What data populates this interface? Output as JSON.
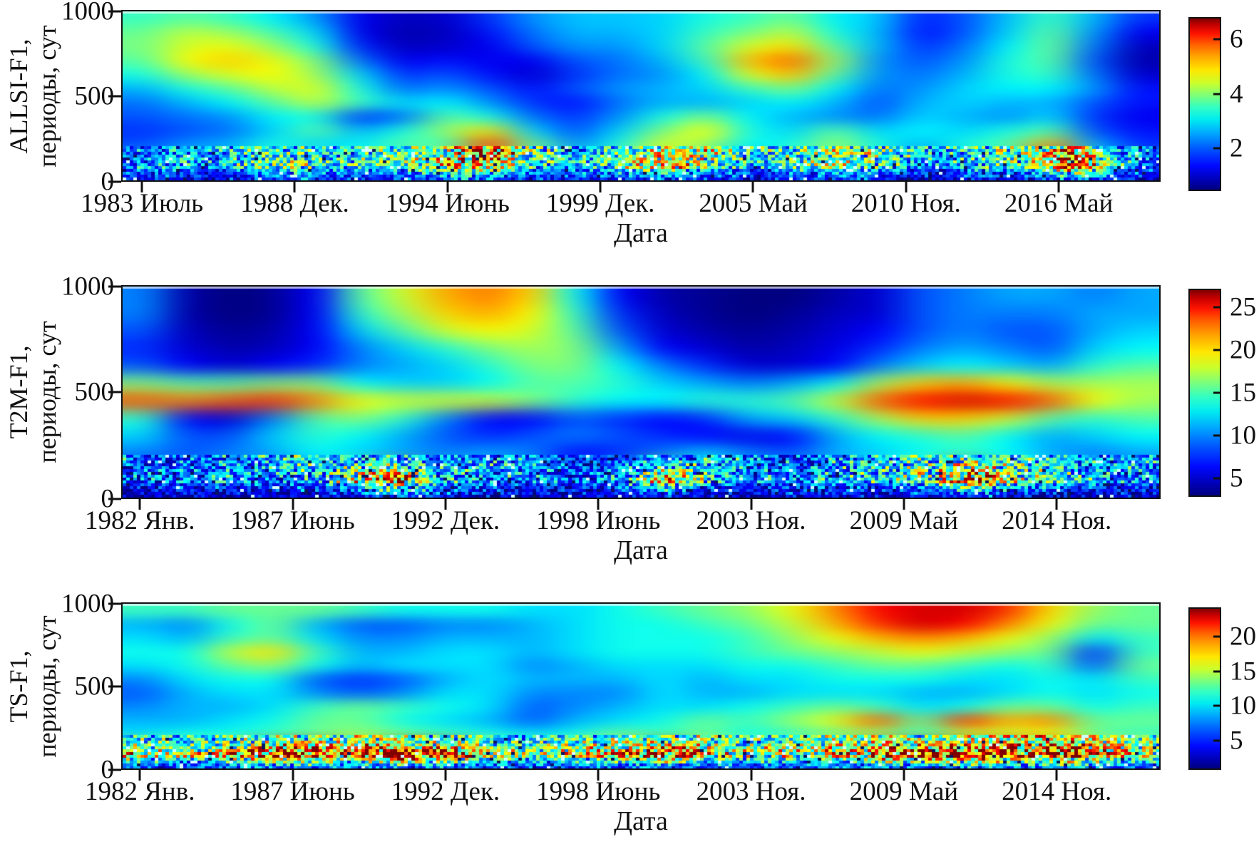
{
  "figure": {
    "description": "Три вейвлет-спектрограммы",
    "x_axis_title": "Дата",
    "colormap": "jet"
  },
  "chart_data": [
    {
      "type": "heatmap",
      "name": "ALLSI-F1",
      "y_label_line1": "ALLSI-F1,",
      "y_label_line2": "периоды, сут",
      "x_axis_title": "Дата",
      "ylim": [
        0,
        1000
      ],
      "y_ticks": [
        "1000",
        "500",
        "0"
      ],
      "x_ticks": [
        {
          "label": "1983 Июль",
          "f": 0.02
        },
        {
          "label": "1988 Дек.",
          "f": 0.167
        },
        {
          "label": "1994 Июнь",
          "f": 0.314
        },
        {
          "label": "1999 Дек.",
          "f": 0.461
        },
        {
          "label": "2005 Май",
          "f": 0.608
        },
        {
          "label": "2010 Ноя.",
          "f": 0.755
        },
        {
          "label": "2016 Май",
          "f": 0.902
        }
      ],
      "colorbar": {
        "vmin": 0.5,
        "vmax": 6.75,
        "ticks": [
          {
            "label": "6",
            "value": 6
          },
          {
            "label": "4",
            "value": 4
          },
          {
            "label": "2",
            "value": 2
          }
        ]
      },
      "grid_rows_top_to_bottom": true,
      "row_period_centers": [
        958,
        875,
        792,
        708,
        625,
        542,
        458,
        375,
        292,
        208,
        125,
        42
      ],
      "values": [
        [
          3.2,
          3.4,
          3.2,
          2.8,
          2.2,
          1.2,
          0.9,
          1.0,
          1.6,
          2.2,
          2.5,
          2.5,
          2.6,
          3.0,
          3.2,
          3.5,
          2.8,
          2.5,
          1.5,
          1.8,
          2.5,
          3.2,
          2.4,
          1.6
        ],
        [
          3.5,
          4.0,
          3.8,
          3.3,
          2.6,
          1.2,
          0.8,
          0.9,
          1.4,
          2.0,
          2.4,
          2.4,
          2.6,
          3.2,
          3.6,
          4.0,
          3.0,
          2.4,
          1.4,
          1.8,
          2.6,
          3.4,
          2.2,
          1.2
        ],
        [
          3.6,
          4.2,
          4.3,
          3.8,
          3.0,
          1.5,
          0.9,
          1.0,
          1.2,
          1.8,
          2.2,
          2.2,
          2.6,
          3.4,
          4.2,
          4.6,
          3.4,
          2.4,
          1.6,
          2.0,
          2.8,
          3.5,
          2.0,
          0.9
        ],
        [
          3.4,
          4.4,
          4.7,
          4.3,
          3.6,
          2.0,
          1.2,
          1.4,
          1.2,
          1.2,
          1.8,
          2.0,
          2.4,
          3.2,
          4.8,
          5.3,
          3.8,
          2.2,
          1.8,
          2.2,
          3.0,
          3.4,
          1.8,
          0.8
        ],
        [
          3.0,
          3.8,
          4.2,
          4.4,
          3.8,
          2.6,
          1.6,
          1.8,
          1.4,
          1.0,
          1.6,
          2.0,
          2.2,
          2.8,
          4.2,
          4.8,
          3.4,
          2.2,
          2.0,
          2.4,
          3.0,
          3.2,
          2.0,
          1.0
        ],
        [
          2.4,
          3.0,
          3.4,
          4.0,
          4.2,
          3.0,
          2.0,
          2.2,
          1.8,
          1.4,
          1.8,
          2.2,
          2.4,
          2.6,
          3.2,
          3.6,
          2.8,
          2.0,
          2.2,
          2.6,
          2.8,
          2.8,
          2.2,
          1.4
        ],
        [
          2.0,
          2.4,
          2.8,
          3.4,
          4.0,
          3.2,
          2.6,
          2.8,
          2.2,
          1.6,
          1.4,
          2.0,
          2.4,
          2.4,
          2.6,
          2.8,
          2.4,
          1.8,
          2.4,
          2.6,
          2.4,
          2.4,
          1.8,
          1.4
        ],
        [
          1.8,
          2.0,
          2.2,
          2.8,
          3.0,
          1.6,
          2.0,
          3.4,
          3.0,
          2.0,
          1.6,
          2.2,
          3.0,
          3.6,
          2.8,
          2.4,
          2.2,
          2.0,
          2.6,
          2.4,
          2.2,
          2.6,
          1.6,
          1.2
        ],
        [
          1.6,
          1.8,
          2.0,
          2.6,
          3.4,
          2.4,
          3.0,
          3.8,
          4.6,
          2.6,
          1.8,
          2.6,
          3.6,
          4.4,
          3.0,
          2.6,
          3.4,
          2.6,
          2.8,
          2.6,
          3.0,
          3.4,
          1.8,
          1.4
        ],
        [
          1.8,
          2.2,
          2.4,
          3.0,
          2.6,
          2.8,
          3.4,
          3.2,
          5.6,
          3.6,
          2.2,
          3.0,
          4.2,
          3.8,
          2.8,
          3.0,
          3.8,
          3.0,
          2.4,
          3.0,
          3.4,
          5.0,
          2.4,
          1.6
        ],
        [
          2.2,
          2.6,
          2.2,
          3.2,
          3.6,
          2.8,
          3.0,
          4.4,
          4.8,
          3.0,
          2.6,
          3.4,
          4.6,
          3.2,
          2.4,
          3.2,
          3.6,
          2.8,
          2.2,
          2.8,
          3.0,
          5.8,
          2.8,
          1.8
        ],
        [
          1.2,
          1.5,
          1.0,
          1.4,
          1.8,
          1.2,
          1.6,
          2.0,
          1.6,
          1.2,
          1.4,
          1.8,
          1.5,
          1.2,
          1.0,
          1.4,
          1.6,
          1.2,
          1.0,
          1.4,
          1.2,
          1.8,
          1.4,
          1.0
        ]
      ]
    },
    {
      "type": "heatmap",
      "name": "T2M-F1",
      "y_label_line1": "T2M-F1,",
      "y_label_line2": "периоды, сут",
      "x_axis_title": "Дата",
      "ylim": [
        0,
        1000
      ],
      "y_ticks": [
        "1000",
        "500",
        "0"
      ],
      "x_ticks": [
        {
          "label": "1982 Янв.",
          "f": 0.018
        },
        {
          "label": "1987 Июнь",
          "f": 0.165
        },
        {
          "label": "1992 Дек.",
          "f": 0.312
        },
        {
          "label": "1998 Июнь",
          "f": 0.459
        },
        {
          "label": "2003 Ноя.",
          "f": 0.606
        },
        {
          "label": "2009 Май",
          "f": 0.753
        },
        {
          "label": "2014 Ноя.",
          "f": 0.9
        }
      ],
      "colorbar": {
        "vmin": 3,
        "vmax": 27,
        "ticks": [
          {
            "label": "25",
            "value": 25
          },
          {
            "label": "20",
            "value": 20
          },
          {
            "label": "15",
            "value": 15
          },
          {
            "label": "10",
            "value": 10
          },
          {
            "label": "5",
            "value": 5
          }
        ]
      },
      "grid_rows_top_to_bottom": true,
      "row_period_centers": [
        958,
        875,
        792,
        708,
        625,
        542,
        458,
        375,
        292,
        208,
        125,
        42
      ],
      "values": [
        [
          9,
          4,
          3,
          3.5,
          6,
          14,
          17,
          20,
          21,
          19,
          12,
          6,
          4,
          3.5,
          3,
          3,
          4,
          5,
          8,
          9,
          10,
          10,
          9,
          10
        ],
        [
          9,
          4,
          3,
          3.5,
          6,
          13,
          16,
          19,
          20,
          18,
          13,
          7,
          4.5,
          3.5,
          3,
          3.5,
          4.5,
          5,
          8,
          9,
          9,
          9,
          10,
          10
        ],
        [
          8,
          4.5,
          3.5,
          4,
          6,
          11,
          14,
          17,
          18,
          17,
          14,
          8,
          5,
          4,
          3.5,
          4,
          5,
          6,
          8,
          9,
          8,
          8,
          10,
          11
        ],
        [
          7,
          5,
          4,
          4.5,
          6,
          9,
          11,
          13,
          15,
          16,
          15,
          10,
          6,
          5,
          4,
          4.5,
          5.5,
          7,
          9,
          10,
          9,
          8,
          11,
          12
        ],
        [
          8,
          6,
          5,
          6,
          7,
          9,
          10,
          11,
          13,
          15,
          15,
          12,
          9,
          7,
          5,
          5,
          6,
          9,
          11,
          12,
          11,
          10,
          13,
          14
        ],
        [
          15,
          14,
          14,
          15,
          15,
          12,
          11,
          11,
          12,
          14,
          14,
          13,
          11,
          10,
          9,
          10,
          12,
          16,
          19,
          20,
          18,
          16,
          16,
          16
        ],
        [
          22,
          21,
          22,
          23,
          21,
          18,
          17,
          17,
          17,
          15,
          13,
          12,
          12,
          13,
          13,
          14,
          17,
          22,
          24,
          25,
          24,
          22,
          18,
          16
        ],
        [
          13,
          6,
          5,
          9,
          14,
          15,
          13,
          9,
          6,
          6,
          8,
          7,
          6,
          7,
          10,
          11,
          13,
          16,
          19,
          19,
          17,
          14,
          13,
          14
        ],
        [
          11,
          8,
          8,
          11,
          13,
          12,
          10,
          8,
          7,
          8,
          9,
          8,
          7,
          6,
          5.5,
          6,
          10,
          12,
          13,
          14,
          12,
          10,
          11,
          12
        ],
        [
          9,
          8,
          9,
          10,
          12,
          11,
          10,
          9,
          10,
          9,
          6,
          7,
          9,
          11,
          9,
          8,
          10,
          11,
          12,
          13,
          12,
          10,
          9,
          10
        ],
        [
          8,
          9,
          10,
          9,
          10,
          16,
          22,
          11,
          10,
          9,
          8,
          10,
          20,
          12,
          9,
          10,
          11,
          12,
          16,
          23,
          14,
          12,
          10,
          9
        ],
        [
          4,
          5,
          4,
          5,
          6,
          5,
          6,
          7,
          5,
          4,
          5,
          6,
          5,
          4,
          5,
          6,
          5,
          4,
          6,
          7,
          5,
          4,
          5,
          4
        ]
      ]
    },
    {
      "type": "heatmap",
      "name": "TS-F1",
      "y_label_line1": "TS-F1,",
      "y_label_line2": "периоды, сут",
      "x_axis_title": "Дата",
      "ylim": [
        0,
        1000
      ],
      "y_ticks": [
        "1000",
        "500",
        "0"
      ],
      "x_ticks": [
        {
          "label": "1982 Янв.",
          "f": 0.018
        },
        {
          "label": "1987 Июнь",
          "f": 0.165
        },
        {
          "label": "1992 Дек.",
          "f": 0.312
        },
        {
          "label": "1998 Июнь",
          "f": 0.459
        },
        {
          "label": "2003 Ноя.",
          "f": 0.606
        },
        {
          "label": "2009 Май",
          "f": 0.753
        },
        {
          "label": "2014 Ноя.",
          "f": 0.9
        }
      ],
      "colorbar": {
        "vmin": 1,
        "vmax": 24,
        "ticks": [
          {
            "label": "20",
            "value": 20
          },
          {
            "label": "15",
            "value": 15
          },
          {
            "label": "10",
            "value": 10
          },
          {
            "label": "5",
            "value": 5
          }
        ]
      },
      "grid_rows_top_to_bottom": true,
      "row_period_centers": [
        958,
        875,
        792,
        708,
        625,
        542,
        458,
        375,
        292,
        208,
        150,
        42
      ],
      "values": [
        [
          11,
          11,
          12,
          12,
          12,
          11,
          10,
          10,
          10,
          9,
          9,
          10,
          11,
          12,
          13,
          15,
          18,
          21,
          22,
          22,
          20,
          16,
          13,
          12
        ],
        [
          8,
          7,
          10,
          12,
          8,
          6,
          6,
          7,
          7,
          8,
          9,
          10,
          10,
          11,
          12,
          14,
          17,
          20,
          22,
          21,
          18,
          15,
          12,
          12
        ],
        [
          9,
          8,
          11,
          12,
          9,
          7,
          7,
          8,
          8,
          8,
          9,
          10,
          10,
          10,
          11,
          13,
          15,
          17,
          18,
          17,
          15,
          13,
          9,
          11
        ],
        [
          10,
          10,
          14,
          16,
          11,
          8,
          8,
          9,
          9,
          8,
          9,
          10,
          10,
          10,
          11,
          12,
          13,
          14,
          15,
          14,
          13,
          12,
          5,
          11
        ],
        [
          9,
          10,
          12,
          13,
          10,
          8,
          9,
          9,
          9,
          7,
          8,
          9,
          9,
          9,
          10,
          10,
          11,
          12,
          12,
          11,
          10,
          11,
          6,
          12
        ],
        [
          7,
          9,
          10,
          10,
          6,
          5,
          6,
          8,
          9,
          8,
          8,
          8,
          9,
          8,
          9,
          9,
          10,
          10,
          10,
          9,
          9,
          10,
          9,
          11
        ],
        [
          6,
          8,
          9,
          9,
          7,
          6,
          7,
          9,
          9,
          7,
          7,
          7,
          9,
          8,
          8,
          9,
          9,
          9,
          8,
          8,
          9,
          10,
          9,
          10
        ],
        [
          7,
          8,
          8,
          9,
          11,
          12,
          11,
          10,
          9,
          6,
          7,
          8,
          9,
          9,
          10,
          11,
          12,
          11,
          9,
          10,
          12,
          12,
          10,
          11
        ],
        [
          8,
          8,
          9,
          10,
          12,
          12,
          10,
          9,
          8,
          6,
          8,
          9,
          10,
          12,
          11,
          13,
          15,
          19,
          12,
          20,
          17,
          18,
          12,
          12
        ],
        [
          9,
          10,
          10,
          11,
          12,
          13,
          12,
          11,
          10,
          9,
          10,
          12,
          11,
          12,
          10,
          11,
          12,
          13,
          11,
          14,
          14,
          15,
          12,
          11
        ],
        [
          16,
          13,
          15,
          21,
          22,
          16,
          23,
          22,
          15,
          13,
          14,
          16,
          22,
          15,
          13,
          14,
          16,
          21,
          22,
          23,
          21,
          22,
          16,
          14
        ],
        [
          5,
          4,
          5,
          6,
          4,
          5,
          6,
          5,
          4,
          5,
          4,
          6,
          5,
          4,
          5,
          4,
          6,
          5,
          4,
          6,
          5,
          6,
          5,
          4
        ]
      ]
    }
  ]
}
